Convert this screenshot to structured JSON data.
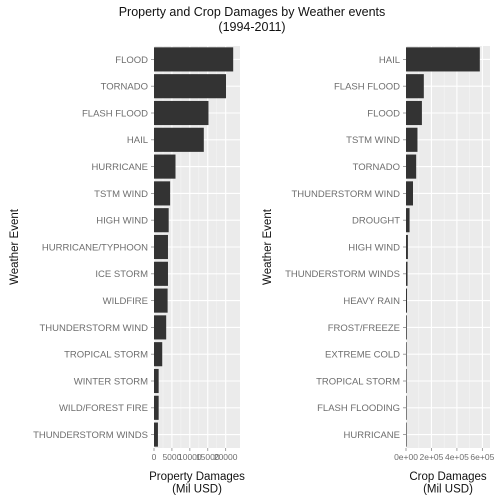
{
  "title": "Property and Crop Damages by Weather events",
  "subtitle": "(1994-2011)",
  "chart_data": [
    {
      "type": "bar",
      "orientation": "horizontal",
      "xlabel_lines": [
        "Property Damages",
        "(Mil USD)"
      ],
      "ylabel": "Weather Event",
      "xlim": [
        0,
        24000
      ],
      "x_ticks": [
        0,
        5000,
        10000,
        15000,
        20000
      ],
      "x_tick_labels": [
        "0",
        "5000",
        "10000",
        "15000",
        "20000"
      ],
      "grid": true,
      "categories": [
        "FLOOD",
        "TORNADO",
        "FLASH FLOOD",
        "HAIL",
        "HURRICANE",
        "TSTM WIND",
        "HIGH WIND",
        "HURRICANE/TYPHOON",
        "ICE STORM",
        "WILDFIRE",
        "THUNDERSTORM WIND",
        "TROPICAL STORM",
        "WINTER STORM",
        "WILD/FOREST FIRE",
        "THUNDERSTORM WINDS"
      ],
      "values": [
        22100,
        20100,
        15200,
        13900,
        6000,
        4500,
        4100,
        3900,
        3900,
        3800,
        3400,
        2300,
        1300,
        1300,
        1100
      ],
      "bar_color": "#333333"
    },
    {
      "type": "bar",
      "orientation": "horizontal",
      "xlabel_lines": [
        "Crop Damages",
        "(Mil USD)"
      ],
      "ylabel": "Weather Event",
      "xlim": [
        0,
        660000
      ],
      "x_ticks": [
        0,
        200000,
        400000,
        600000
      ],
      "x_tick_labels": [
        "0e+00",
        "2e+05",
        "4e+05",
        "6e+05"
      ],
      "grid": true,
      "categories": [
        "HAIL",
        "FLASH FLOOD",
        "FLOOD",
        "TSTM WIND",
        "TORNADO",
        "THUNDERSTORM WIND",
        "DROUGHT",
        "HIGH WIND",
        "THUNDERSTORM WINDS",
        "HEAVY RAIN",
        "FROST/FREEZE",
        "EXTREME COLD",
        "TROPICAL STORM",
        "FLASH FLOODING",
        "HURRICANE"
      ],
      "values": [
        580000,
        140000,
        125000,
        90000,
        80000,
        55000,
        28000,
        15000,
        12000,
        8000,
        6000,
        5000,
        4000,
        3000,
        2500
      ],
      "bar_color": "#333333"
    }
  ]
}
